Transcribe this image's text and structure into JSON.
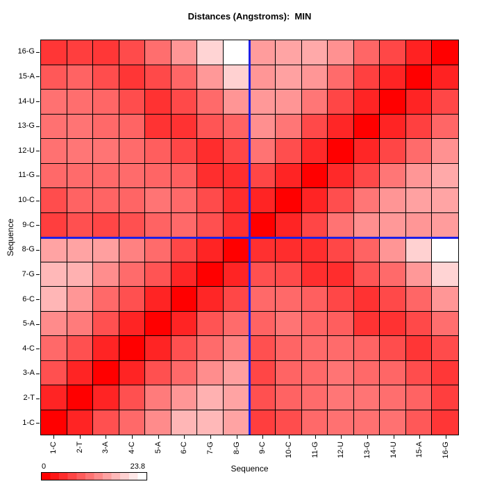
{
  "title": "Distances (Angstroms):  MIN",
  "x_axis": {
    "label": "Sequence",
    "ticks": [
      "1-C",
      "2-T",
      "3-A",
      "4-C",
      "5-A",
      "6-C",
      "7-G",
      "8-G",
      "9-C",
      "10-C",
      "11-G",
      "12-U",
      "13-G",
      "14-U",
      "15-A",
      "16-G"
    ]
  },
  "y_axis": {
    "label": "Sequence",
    "ticks": [
      "1-C",
      "2-T",
      "3-A",
      "4-C",
      "5-A",
      "6-C",
      "7-G",
      "8-G",
      "9-C",
      "10-C",
      "11-G",
      "12-U",
      "13-G",
      "14-U",
      "15-A",
      "16-G"
    ],
    "order": "bottom-to-top"
  },
  "legend": {
    "min_label": "0",
    "max_label": "23.8",
    "steps": 12,
    "start_color": "#FF0000",
    "end_color": "#FFFFFF"
  },
  "crosshair": {
    "color": "#1E1EE6",
    "between_labels": "8-G and 9-C"
  },
  "grid_line_color": "#000000",
  "chart_data": {
    "type": "heatmap",
    "title": "Distances (Angstroms):  MIN",
    "xlabel": "Sequence",
    "ylabel": "Sequence",
    "categories": [
      "1-C",
      "2-T",
      "3-A",
      "4-C",
      "5-A",
      "6-C",
      "7-G",
      "8-G",
      "9-C",
      "10-C",
      "11-G",
      "12-U",
      "13-G",
      "14-U",
      "15-A",
      "16-G"
    ],
    "value_range": [
      0,
      23.8
    ],
    "colormap": {
      "low": "#FF0000",
      "high": "#FFFFFF"
    },
    "matrix_note": "symmetric distance matrix; row/col order 1-C..16-G; y axis drawn bottom-to-top",
    "matrix": [
      [
        0,
        3.4,
        7.5,
        9.8,
        13,
        17,
        17.2,
        15.2,
        5.8,
        7.2,
        9.8,
        10.5,
        10.5,
        10.5,
        8.2,
        5.0
      ],
      [
        3.4,
        0,
        3.4,
        7.5,
        11.5,
        14,
        16.5,
        15.2,
        7.5,
        9.2,
        10,
        11,
        10.8,
        10.3,
        9.2,
        5.8
      ],
      [
        7.5,
        3.4,
        0,
        3.4,
        7.5,
        9.8,
        13.2,
        14.8,
        6.5,
        9.3,
        9.8,
        10.8,
        9.8,
        9.5,
        7.2,
        5.1
      ],
      [
        9.8,
        7.5,
        3.4,
        0,
        3.4,
        7.5,
        10,
        12,
        7.5,
        9.4,
        10,
        10,
        9.3,
        7.2,
        5.0,
        7.0
      ],
      [
        13,
        11.5,
        7.5,
        3.4,
        0,
        3.4,
        7.8,
        10,
        9.2,
        10.8,
        9.4,
        8.8,
        4.8,
        4.7,
        6.8,
        10.3
      ],
      [
        17,
        14,
        9.8,
        7.5,
        3.4,
        0,
        3.5,
        6.6,
        9.8,
        9.8,
        8.9,
        6.6,
        4.7,
        6.8,
        9.5,
        14
      ],
      [
        17.2,
        16.5,
        13.2,
        10,
        7.8,
        3.5,
        0,
        3.4,
        7.5,
        7.0,
        4.3,
        4.2,
        7.9,
        9.9,
        14.2,
        19.8
      ],
      [
        15.2,
        15.2,
        14.8,
        12,
        10,
        6.6,
        3.4,
        0,
        4.5,
        4.2,
        4.3,
        6.6,
        9.2,
        13.9,
        19.5,
        23.8
      ],
      [
        5.8,
        7.5,
        6.5,
        7.5,
        9.2,
        9.8,
        7.5,
        4.5,
        0,
        3.4,
        6.5,
        10.7,
        13.3,
        14.2,
        14.0,
        14.6
      ],
      [
        7.2,
        9.2,
        9.3,
        9.4,
        10.8,
        9.8,
        7.0,
        4.2,
        3.4,
        0,
        3.4,
        7.3,
        11.0,
        13.9,
        15.0,
        15.3
      ],
      [
        9.8,
        10,
        9.8,
        10,
        9.4,
        8.9,
        4.3,
        4.3,
        6.5,
        3.4,
        0,
        3.8,
        6.8,
        11.0,
        14.0,
        15.8
      ],
      [
        10.5,
        11,
        10.8,
        10,
        8.8,
        6.6,
        4.2,
        6.6,
        10.7,
        7.3,
        3.8,
        0,
        3.5,
        6.5,
        10.0,
        13.5
      ],
      [
        10.5,
        10.8,
        9.8,
        9.3,
        4.8,
        4.7,
        7.9,
        9.2,
        13.3,
        11.0,
        6.8,
        3.5,
        0,
        3.4,
        6.0,
        9.5
      ],
      [
        10.5,
        10.3,
        9.5,
        7.2,
        4.7,
        6.8,
        9.9,
        13.9,
        14.2,
        13.9,
        11.0,
        6.5,
        3.4,
        0,
        3.4,
        6.6
      ],
      [
        8.2,
        9.2,
        7.2,
        5.0,
        6.8,
        9.5,
        14.2,
        19.5,
        14.0,
        15.0,
        14.0,
        10.0,
        6.0,
        3.4,
        0,
        3.2
      ],
      [
        5.0,
        5.8,
        5.1,
        7.0,
        10.3,
        14,
        19.8,
        23.8,
        14.6,
        15.3,
        15.8,
        13.5,
        9.5,
        6.6,
        3.2,
        0
      ]
    ]
  }
}
